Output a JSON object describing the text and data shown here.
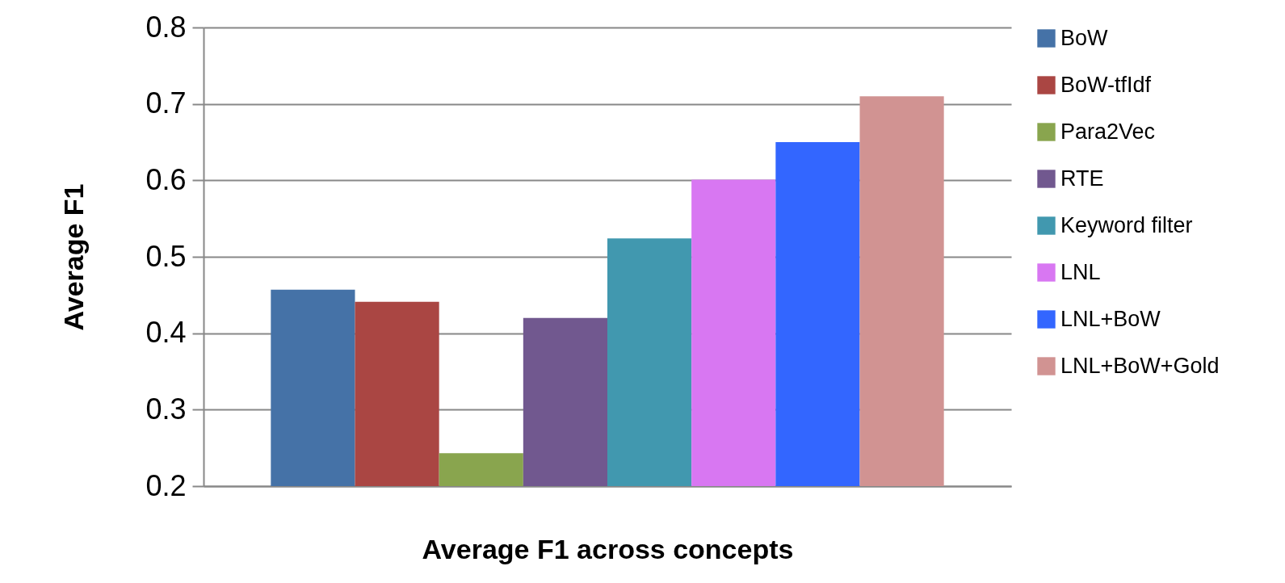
{
  "chart_data": {
    "type": "bar",
    "xlabel": "Average F1 across concepts",
    "ylabel": "Average F1",
    "categories": [
      null
    ],
    "series": [
      {
        "name": "BoW",
        "color": "#4572a7",
        "values": [
          0.457
        ]
      },
      {
        "name": "BoW-tfIdf",
        "color": "#aa4643",
        "values": [
          0.441
        ]
      },
      {
        "name": "Para2Vec",
        "color": "#89a54e",
        "values": [
          0.243
        ]
      },
      {
        "name": "RTE",
        "color": "#71588f",
        "values": [
          0.42
        ]
      },
      {
        "name": "Keyword filter",
        "color": "#4198af",
        "values": [
          0.524
        ]
      },
      {
        "name": "LNL",
        "color": "#d877f2",
        "values": [
          0.601
        ]
      },
      {
        "name": "LNL+BoW",
        "color": "#3366ff",
        "values": [
          0.65
        ]
      },
      {
        "name": "LNL+BoW+Gold",
        "color": "#d19392",
        "values": [
          0.71
        ]
      }
    ],
    "ylim": [
      0.2,
      0.8
    ],
    "yticks": [
      0.2,
      0.3,
      0.4,
      0.5,
      0.6,
      0.7,
      0.8
    ],
    "grid": "y",
    "legend": "right"
  }
}
